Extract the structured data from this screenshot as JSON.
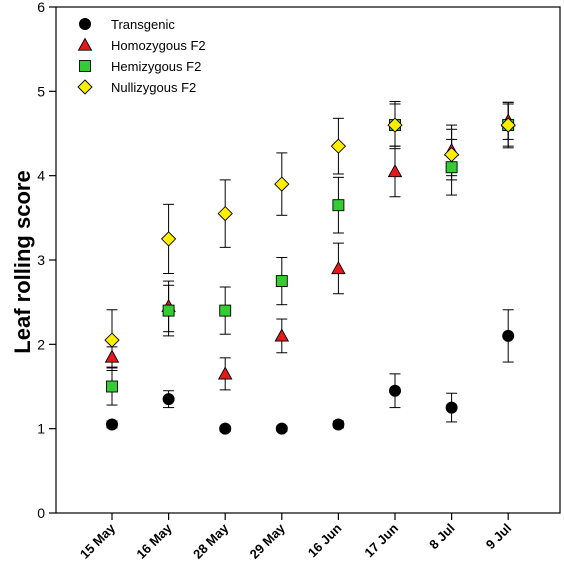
{
  "chart_data": {
    "type": "scatter",
    "ylabel": "Leaf rolling score",
    "xlabel": "",
    "ylim": [
      0,
      6
    ],
    "yticks": [
      0,
      1,
      2,
      3,
      4,
      5,
      6
    ],
    "categories": [
      "15 May",
      "16 May",
      "28 May",
      "29 May",
      "16 Jun",
      "17 Jun",
      "8 Jul",
      "9 Jul"
    ],
    "legend_position": "top-left",
    "series": [
      {
        "name": "Transgenic",
        "marker": "circle",
        "color": "#000000",
        "values": [
          1.05,
          1.35,
          1.0,
          1.0,
          1.05,
          1.45,
          1.25,
          2.1
        ],
        "errors": [
          0.04,
          0.1,
          0.03,
          0.03,
          0.04,
          0.2,
          0.17,
          0.31
        ]
      },
      {
        "name": "Homozygous F2",
        "marker": "triangle",
        "color": "#e31a1c",
        "values": [
          1.85,
          2.45,
          1.65,
          2.1,
          2.9,
          4.05,
          4.3,
          4.65
        ],
        "errors": [
          0.12,
          0.3,
          0.19,
          0.2,
          0.3,
          0.3,
          0.3,
          0.22
        ]
      },
      {
        "name": "Hemizygous F2",
        "marker": "square",
        "color": "#33cc33",
        "values": [
          1.5,
          2.4,
          2.4,
          2.75,
          3.65,
          4.6,
          4.1,
          4.6
        ],
        "errors": [
          0.22,
          0.3,
          0.28,
          0.28,
          0.33,
          0.25,
          0.33,
          0.25
        ]
      },
      {
        "name": "Nullizygous F2",
        "marker": "diamond",
        "color": "#ffee00",
        "values": [
          2.05,
          3.25,
          3.55,
          3.9,
          4.35,
          4.6,
          4.25,
          4.6
        ],
        "errors": [
          0.36,
          0.41,
          0.4,
          0.37,
          0.33,
          0.28,
          0.3,
          0.27
        ]
      }
    ]
  }
}
